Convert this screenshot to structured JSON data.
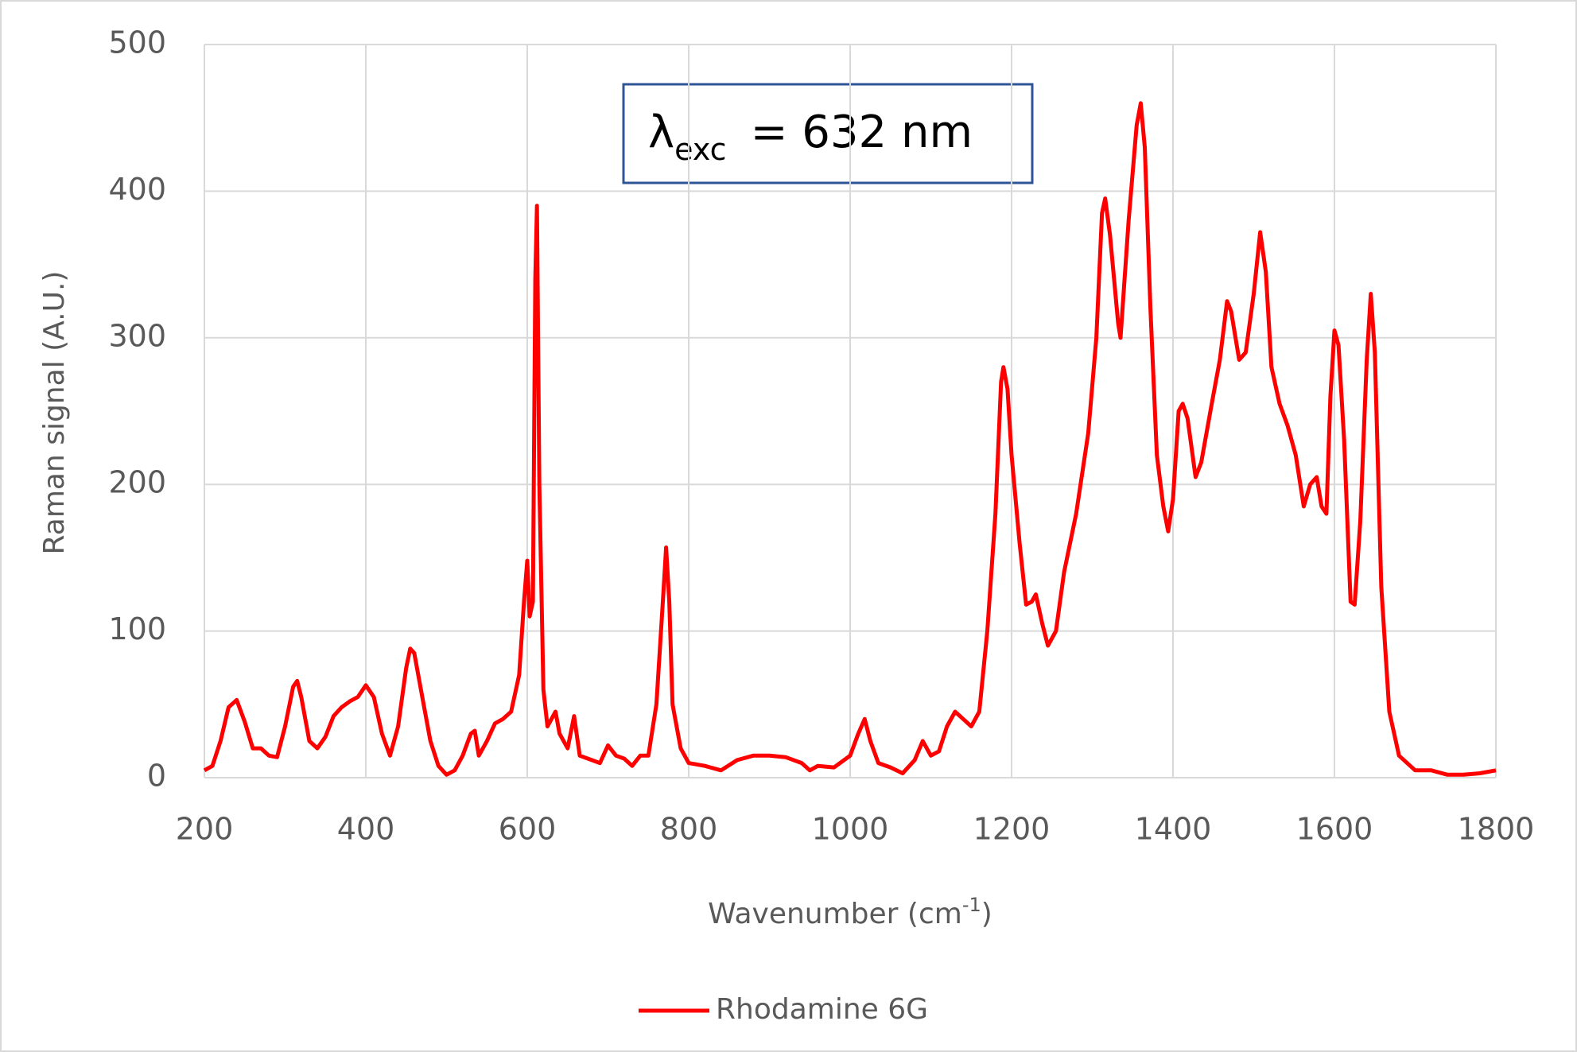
{
  "chart_data": {
    "type": "line",
    "x_label_parts": [
      "Wavenumber (cm",
      "-1",
      ")"
    ],
    "y_label": "Raman signal (A.U.)",
    "annotation": {
      "symbol": "λ",
      "subscript": "exc",
      "text": "= 632 nm"
    },
    "x": [
      200,
      210,
      220,
      230,
      240,
      250,
      260,
      270,
      280,
      290,
      300,
      310,
      315,
      320,
      330,
      340,
      350,
      360,
      370,
      380,
      390,
      400,
      410,
      420,
      430,
      440,
      450,
      455,
      460,
      470,
      480,
      490,
      500,
      510,
      520,
      530,
      535,
      540,
      550,
      560,
      570,
      580,
      590,
      596,
      600,
      603,
      607,
      610,
      612,
      615,
      620,
      625,
      635,
      640,
      650,
      658,
      665,
      680,
      690,
      700,
      710,
      720,
      730,
      740,
      750,
      760,
      768,
      772,
      776,
      780,
      790,
      800,
      820,
      840,
      860,
      880,
      900,
      920,
      940,
      950,
      960,
      980,
      1000,
      1010,
      1018,
      1025,
      1035,
      1050,
      1065,
      1080,
      1090,
      1100,
      1110,
      1120,
      1130,
      1140,
      1150,
      1160,
      1170,
      1180,
      1187,
      1190,
      1195,
      1200,
      1210,
      1218,
      1225,
      1230,
      1238,
      1245,
      1255,
      1265,
      1280,
      1295,
      1305,
      1312,
      1316,
      1322,
      1332,
      1335,
      1345,
      1355,
      1360,
      1365,
      1372,
      1380,
      1388,
      1394,
      1400,
      1407,
      1412,
      1418,
      1428,
      1435,
      1448,
      1458,
      1467,
      1472,
      1482,
      1490,
      1500,
      1508,
      1515,
      1522,
      1532,
      1542,
      1552,
      1562,
      1570,
      1578,
      1584,
      1590,
      1595,
      1600,
      1605,
      1612,
      1620,
      1625,
      1632,
      1640,
      1645,
      1650,
      1658,
      1668,
      1680,
      1700,
      1720,
      1740,
      1760,
      1780,
      1800
    ],
    "series": [
      {
        "name": "Rhodamine 6G",
        "color": "#ff0000",
        "values": [
          5,
          8,
          25,
          48,
          53,
          38,
          20,
          20,
          15,
          14,
          35,
          62,
          66,
          55,
          25,
          20,
          28,
          42,
          48,
          52,
          55,
          63,
          55,
          30,
          15,
          35,
          75,
          88,
          85,
          55,
          25,
          8,
          2,
          5,
          15,
          30,
          32,
          15,
          25,
          37,
          40,
          45,
          70,
          120,
          148,
          110,
          120,
          340,
          390,
          200,
          60,
          35,
          45,
          30,
          20,
          42,
          15,
          12,
          10,
          22,
          15,
          13,
          8,
          15,
          15,
          50,
          120,
          157,
          120,
          50,
          20,
          10,
          8,
          5,
          12,
          15,
          15,
          14,
          10,
          5,
          8,
          7,
          15,
          30,
          40,
          25,
          10,
          7,
          3,
          12,
          25,
          15,
          18,
          35,
          45,
          40,
          35,
          45,
          100,
          180,
          270,
          280,
          265,
          220,
          160,
          118,
          120,
          125,
          105,
          90,
          100,
          140,
          180,
          235,
          300,
          385,
          395,
          370,
          310,
          300,
          380,
          445,
          460,
          430,
          320,
          220,
          185,
          168,
          190,
          250,
          255,
          245,
          205,
          215,
          255,
          285,
          325,
          318,
          285,
          290,
          330,
          372,
          345,
          280,
          255,
          240,
          220,
          185,
          200,
          205,
          185,
          180,
          260,
          305,
          295,
          230,
          120,
          118,
          175,
          285,
          330,
          290,
          130,
          45,
          15,
          5,
          5,
          2,
          2,
          3,
          5
        ]
      }
    ],
    "xlim": [
      200,
      1800
    ],
    "xticks": [
      200,
      400,
      600,
      800,
      1000,
      1200,
      1400,
      1600,
      1800
    ],
    "ylim": [
      0,
      500
    ],
    "yticks": [
      0,
      100,
      200,
      300,
      400,
      500
    ],
    "grid": true,
    "legend": "bottom"
  }
}
